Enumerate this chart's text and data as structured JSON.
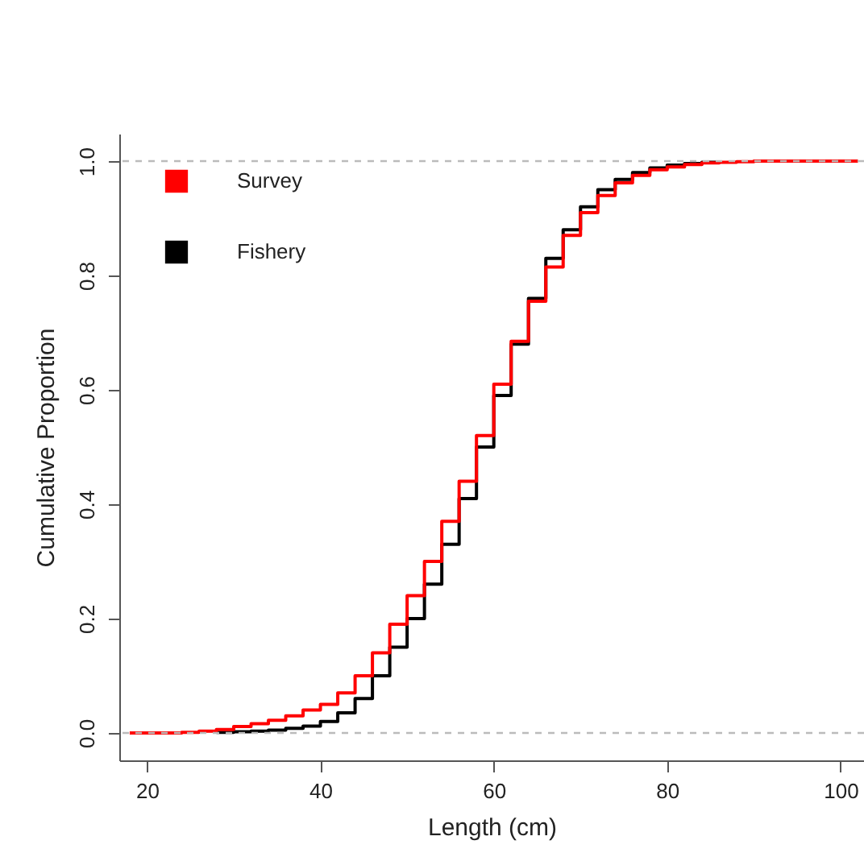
{
  "chart_data": {
    "type": "step",
    "xlabel": "Length (cm)",
    "ylabel": "Cumulative Proportion",
    "x": [
      18,
      20,
      22,
      24,
      26,
      28,
      30,
      32,
      34,
      36,
      38,
      40,
      42,
      44,
      46,
      48,
      50,
      52,
      54,
      56,
      58,
      60,
      62,
      64,
      66,
      68,
      70,
      72,
      74,
      76,
      78,
      80,
      82,
      84,
      86,
      88,
      90,
      92,
      94,
      96,
      98,
      100,
      102
    ],
    "series": [
      {
        "name": "Survey",
        "color": "#ff0000",
        "values": [
          0,
          0,
          0,
          0.001,
          0.003,
          0.006,
          0.011,
          0.016,
          0.022,
          0.03,
          0.04,
          0.05,
          0.07,
          0.1,
          0.14,
          0.19,
          0.24,
          0.3,
          0.37,
          0.44,
          0.52,
          0.61,
          0.685,
          0.755,
          0.815,
          0.87,
          0.91,
          0.94,
          0.962,
          0.975,
          0.985,
          0.99,
          0.994,
          0.997,
          0.998,
          0.999,
          1,
          1,
          1,
          1,
          1,
          1,
          1
        ]
      },
      {
        "name": "Fishery",
        "color": "#000000",
        "values": [
          null,
          null,
          null,
          null,
          null,
          0.001,
          0.002,
          0.003,
          0.005,
          0.008,
          0.012,
          0.02,
          0.035,
          0.06,
          0.1,
          0.15,
          0.2,
          0.26,
          0.33,
          0.41,
          0.5,
          0.59,
          0.68,
          0.76,
          0.83,
          0.88,
          0.92,
          0.95,
          0.968,
          0.98,
          0.988,
          0.993,
          0.996,
          0.998,
          0.999,
          null,
          null,
          null,
          null,
          null,
          null,
          null,
          null
        ]
      }
    ],
    "xlim": [
      16.8,
      102.7
    ],
    "ylim": [
      -0.048,
      1.048
    ],
    "xticks": [
      20,
      40,
      60,
      80,
      100
    ],
    "yticks": [
      {
        "value": 0,
        "label": "0.0"
      },
      {
        "value": 0.2,
        "label": "0.2"
      },
      {
        "value": 0.4,
        "label": "0.4"
      },
      {
        "value": 0.6,
        "label": "0.6"
      },
      {
        "value": 0.8,
        "label": "0.8"
      },
      {
        "value": 1,
        "label": "1.0"
      }
    ],
    "ref_lines": [
      {
        "axis": "y",
        "value": 0,
        "color": "#bbbbbb",
        "line_style": "dashed"
      },
      {
        "axis": "y",
        "value": 1,
        "color": "#bbbbbb",
        "line_style": "dashed"
      }
    ],
    "legend": "top left",
    "grid": false
  }
}
